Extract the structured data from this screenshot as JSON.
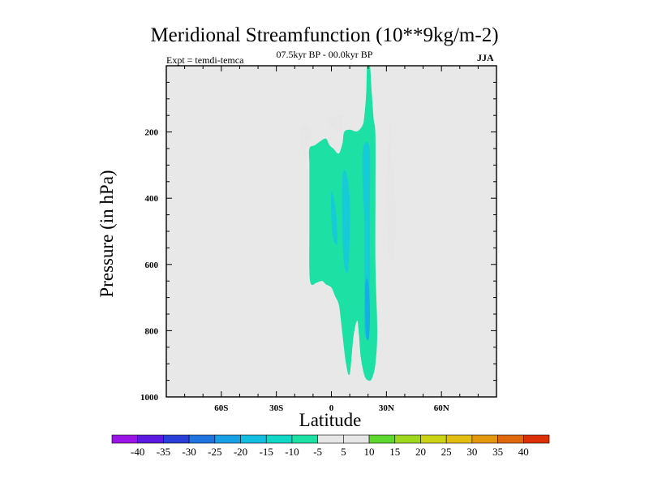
{
  "chart_data": {
    "type": "contour",
    "title": "Meridional Streamfunction (10**9kg/m-2)",
    "subtitle": "07.5kyr BP - 00.0kyr BP",
    "left_label": "Expt = temdi-temca",
    "right_label": "JJA",
    "xlabel": "Latitude",
    "ylabel": "Pressure (in hPa)",
    "xlim": [
      -90,
      90
    ],
    "ylim": [
      1000,
      0
    ],
    "x_ticks": [
      {
        "value": -60,
        "label": "60S"
      },
      {
        "value": -30,
        "label": "30S"
      },
      {
        "value": 0,
        "label": "0"
      },
      {
        "value": 30,
        "label": "30N"
      },
      {
        "value": 60,
        "label": "60N"
      }
    ],
    "y_ticks": [
      {
        "value": 200,
        "label": "200"
      },
      {
        "value": 400,
        "label": "400"
      },
      {
        "value": 600,
        "label": "600"
      },
      {
        "value": 800,
        "label": "800"
      },
      {
        "value": 1000,
        "label": "1000"
      }
    ],
    "background_color": "#e8e8e8",
    "levels": [
      -40,
      -35,
      -30,
      -25,
      -20,
      -15,
      -10,
      -5,
      5,
      10,
      15,
      20,
      25,
      30,
      35,
      40
    ],
    "level_labels": [
      "-40",
      "-35",
      "-30",
      "-25",
      "-20",
      "-15",
      "-10",
      "-5",
      "5",
      "10",
      "15",
      "20",
      "25",
      "30",
      "35",
      "40"
    ],
    "colors": [
      "#9a14e6",
      "#5a1ae0",
      "#2a3ed8",
      "#1f74e0",
      "#17a0e6",
      "#12bddf",
      "#12d6c6",
      "#1de0a4",
      "#e6e6e6",
      "#5ed72e",
      "#9ed81e",
      "#cad414",
      "#e2be12",
      "#e2970e",
      "#e0680c",
      "#dc3008"
    ],
    "regions": [
      {
        "name": "green-cell-south-upper",
        "value": 5,
        "points": [
          [
            -14,
            240
          ],
          [
            -11,
            215
          ],
          [
            -12,
            185
          ],
          [
            -15,
            175
          ],
          [
            -17,
            190
          ],
          [
            -17,
            225
          ],
          [
            -16,
            258
          ],
          [
            -14,
            280
          ]
        ]
      },
      {
        "name": "green-cell-equator-upper",
        "value": 5,
        "points": [
          [
            -1.5,
            160
          ],
          [
            2,
            155
          ],
          [
            6,
            150
          ],
          [
            6,
            180
          ],
          [
            4,
            200
          ],
          [
            1,
            190
          ],
          [
            -1.5,
            175
          ]
        ]
      },
      {
        "name": "green-cell-30n",
        "value": 5,
        "points": [
          [
            32,
            270
          ],
          [
            34,
            330
          ],
          [
            35,
            420
          ],
          [
            35,
            520
          ],
          [
            33,
            590
          ],
          [
            31,
            560
          ],
          [
            30,
            470
          ],
          [
            30,
            360
          ],
          [
            31,
            260
          ],
          [
            32,
            175
          ],
          [
            33,
            200
          ],
          [
            33,
            240
          ]
        ]
      },
      {
        "name": "teal-main-cell",
        "value": -5,
        "points": [
          [
            -12,
            250
          ],
          [
            -9,
            240
          ],
          [
            -6,
            228
          ],
          [
            -3,
            220
          ],
          [
            -1,
            240
          ],
          [
            1,
            250
          ],
          [
            4,
            265
          ],
          [
            6,
            235
          ],
          [
            7,
            200
          ],
          [
            10,
            193
          ],
          [
            14,
            198
          ],
          [
            17,
            180
          ],
          [
            18,
            150
          ],
          [
            19,
            80
          ],
          [
            19.5,
            0
          ],
          [
            21,
            0
          ],
          [
            22,
            80
          ],
          [
            23,
            160
          ],
          [
            24,
            210
          ],
          [
            24,
            400
          ],
          [
            24,
            600
          ],
          [
            25,
            800
          ],
          [
            24,
            900
          ],
          [
            22,
            945
          ],
          [
            20,
            950
          ],
          [
            18,
            935
          ],
          [
            16,
            880
          ],
          [
            15,
            810
          ],
          [
            14,
            770
          ],
          [
            12,
            820
          ],
          [
            10,
            930
          ],
          [
            8,
            900
          ],
          [
            6,
            810
          ],
          [
            5,
            760
          ],
          [
            4,
            720
          ],
          [
            2,
            695
          ],
          [
            0,
            670
          ],
          [
            -3,
            660
          ],
          [
            -5,
            650
          ],
          [
            -8,
            655
          ],
          [
            -11,
            660
          ],
          [
            -12,
            620
          ],
          [
            -12,
            500
          ],
          [
            -12,
            380
          ],
          [
            -12,
            300
          ]
        ]
      },
      {
        "name": "core-left",
        "value": -10,
        "points": [
          [
            0,
            380
          ],
          [
            2,
            420
          ],
          [
            3,
            480
          ],
          [
            3,
            540
          ],
          [
            1,
            520
          ],
          [
            0,
            460
          ]
        ]
      },
      {
        "name": "core-mid",
        "value": -10,
        "points": [
          [
            6,
            340
          ],
          [
            8,
            320
          ],
          [
            10,
            400
          ],
          [
            10,
            520
          ],
          [
            9,
            620
          ],
          [
            7,
            600
          ],
          [
            6,
            500
          ]
        ]
      },
      {
        "name": "core-right",
        "value": -10,
        "points": [
          [
            17,
            260
          ],
          [
            19,
            230
          ],
          [
            21,
            260
          ],
          [
            21,
            400
          ],
          [
            21,
            600
          ],
          [
            21,
            750
          ],
          [
            20,
            820
          ],
          [
            18,
            800
          ],
          [
            18,
            650
          ],
          [
            18,
            480
          ],
          [
            17,
            350
          ]
        ]
      },
      {
        "name": "core-deep",
        "value": -15,
        "points": [
          [
            18.5,
            660
          ],
          [
            20,
            650
          ],
          [
            21,
            740
          ],
          [
            20.5,
            820
          ],
          [
            19,
            820
          ],
          [
            18.5,
            760
          ]
        ]
      }
    ]
  }
}
